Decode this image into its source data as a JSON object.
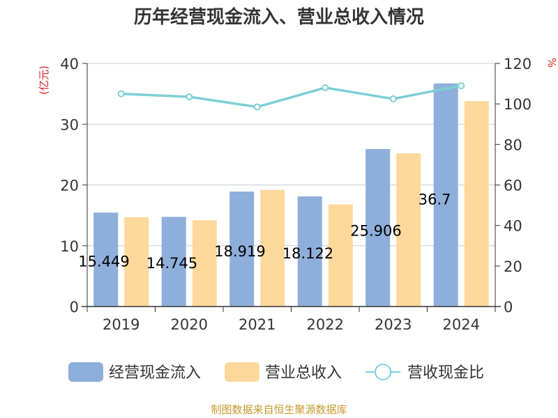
{
  "source": "制图数据来自恒生聚源数据库",
  "chart_data": {
    "type": "bar",
    "title": "历年经营现金流入、营业总收入情况",
    "y_left_unit": "(亿元)",
    "y_right_unit": "%",
    "categories": [
      "2019",
      "2020",
      "2021",
      "2022",
      "2023",
      "2024"
    ],
    "y_left": {
      "min": 0,
      "max": 40,
      "ticks": [
        "0",
        "10",
        "20",
        "30",
        "40"
      ]
    },
    "y_right": {
      "min": 0,
      "max": 120,
      "ticks": [
        "0",
        "20",
        "40",
        "60",
        "80",
        "100",
        "120"
      ]
    },
    "grid": true,
    "legend_position": "bottom",
    "series": [
      {
        "name": "经营现金流入",
        "kind": "bar",
        "axis": "left",
        "color": "#8eaedb",
        "values": [
          15.449,
          14.745,
          18.919,
          18.122,
          25.906,
          36.7
        ],
        "labels": [
          "15.449",
          "14.745",
          "18.919",
          "18.122",
          "25.906",
          "36.7"
        ]
      },
      {
        "name": "营业总收入",
        "kind": "bar",
        "axis": "left",
        "color": "#fcd89b",
        "values": [
          14.7,
          14.2,
          19.2,
          16.8,
          25.2,
          33.8
        ]
      },
      {
        "name": "营收现金比",
        "kind": "line",
        "axis": "right",
        "color": "#7ccfd6",
        "values": [
          105,
          103.5,
          98.5,
          108,
          102.5,
          109
        ]
      }
    ]
  }
}
